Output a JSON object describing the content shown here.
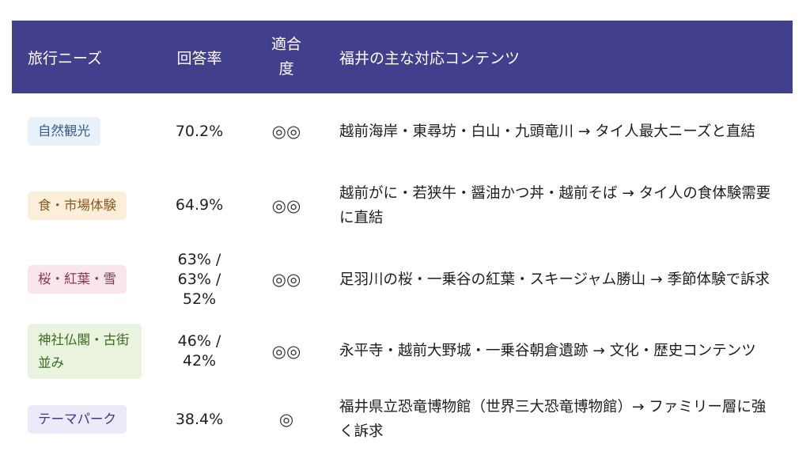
{
  "header": {
    "need": "旅行ニーズ",
    "rate": "回答率",
    "fit": "適合度",
    "content": "福井の主な対応コンテンツ"
  },
  "rows": [
    {
      "need": "自然観光",
      "rate": "70.2%",
      "fit": "◎◎",
      "content": "越前海岸・東尋坊・白山・九頭竜川 → タイ人最大ニーズと直結",
      "tag_bg": "#e8f0fa",
      "tag_color": "#3a5d8a"
    },
    {
      "need": "食・市場体験",
      "rate": "64.9%",
      "fit": "◎◎",
      "content": "越前がに・若狭牛・醤油かつ丼・越前そば → タイ人の食体験需要に直結",
      "tag_bg": "#fbefd9",
      "tag_color": "#8a5a1e"
    },
    {
      "need": "桜・紅葉・雪",
      "rate": "63% / 63% / 52%",
      "fit": "◎◎",
      "content": "足羽川の桜・一乗谷の紅葉・スキージャム勝山 → 季節体験で訴求",
      "tag_bg": "#f9e6ec",
      "tag_color": "#8a3450"
    },
    {
      "need": "神社仏閣・古街並み",
      "rate": "46% / 42%",
      "fit": "◎◎",
      "content": "永平寺・越前大野城・一乗谷朝倉遺跡 → 文化・歴史コンテンツ",
      "tag_bg": "#e9f3de",
      "tag_color": "#3e6a25"
    },
    {
      "need": "テーマパーク",
      "rate": "38.4%",
      "fit": "◎",
      "content": "福井県立恐竜博物館（世界三大恐竜博物館）→ ファミリー層に強く訴求",
      "tag_bg": "#eceaf8",
      "tag_color": "#3b3a85"
    }
  ]
}
